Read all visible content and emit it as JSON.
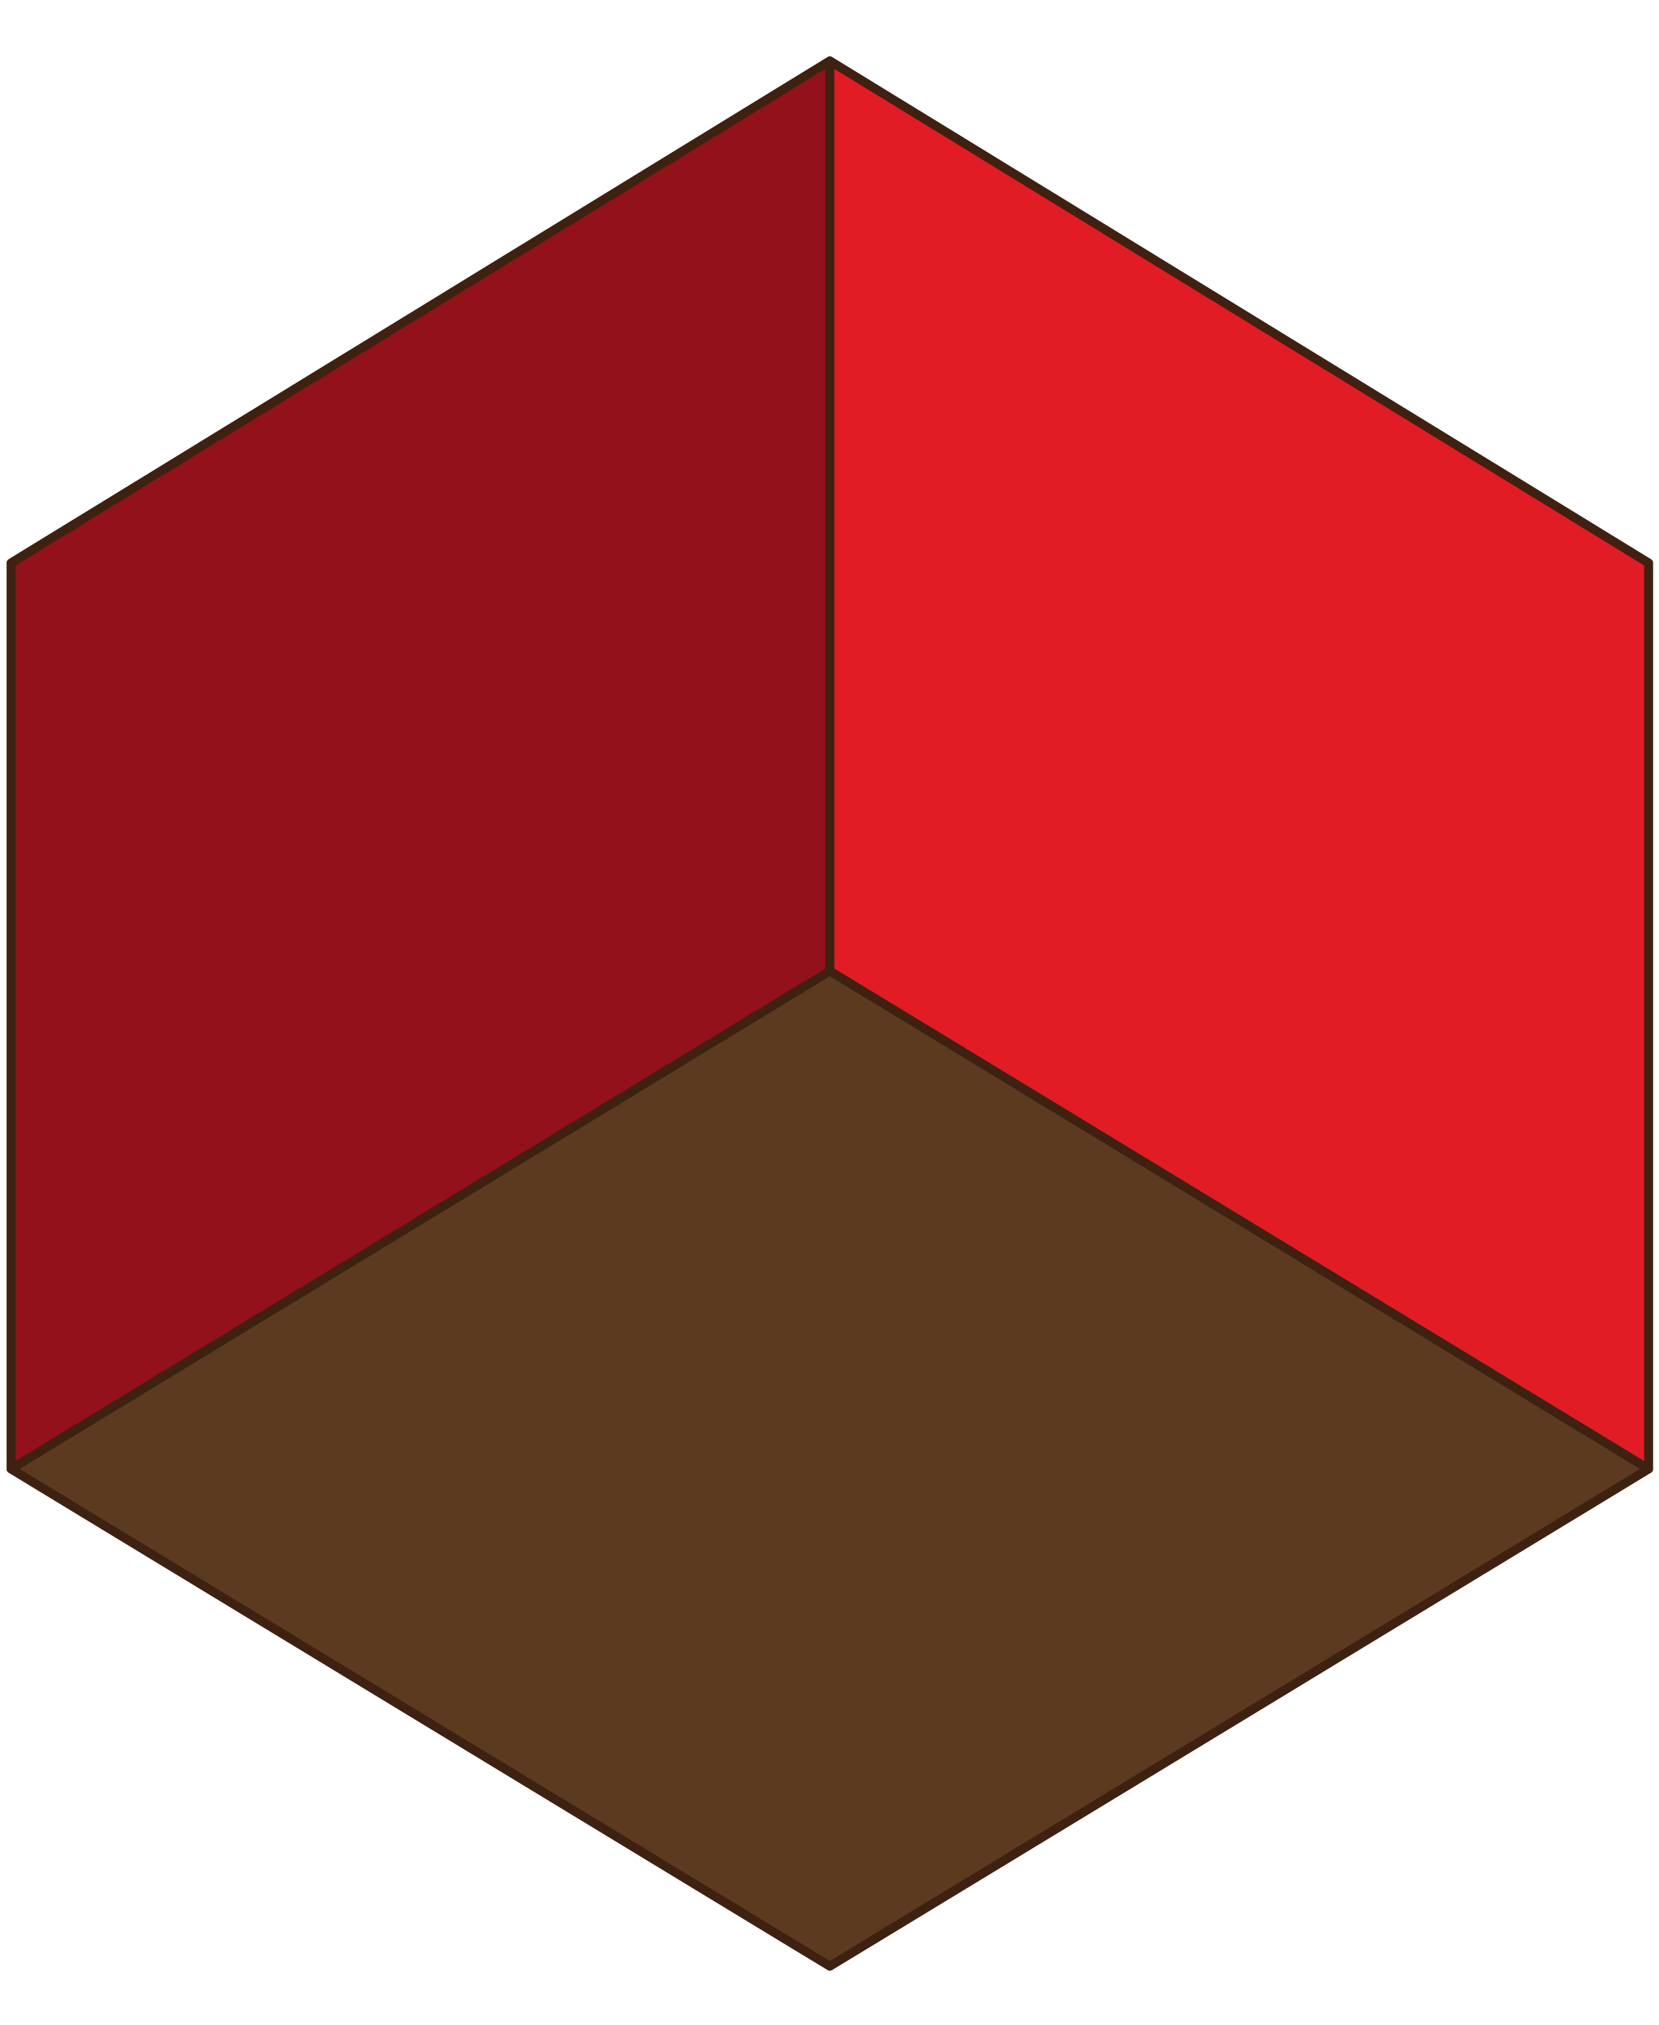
{
  "figure": {
    "type": "isometric-cube-interior",
    "faces": [
      {
        "name": "left-wall",
        "color": "#92111A"
      },
      {
        "name": "right-wall",
        "color": "#E11C24"
      },
      {
        "name": "floor",
        "color": "#5C3A20"
      }
    ],
    "outline_color": "#3F2112",
    "background": "#FFFFFF"
  }
}
